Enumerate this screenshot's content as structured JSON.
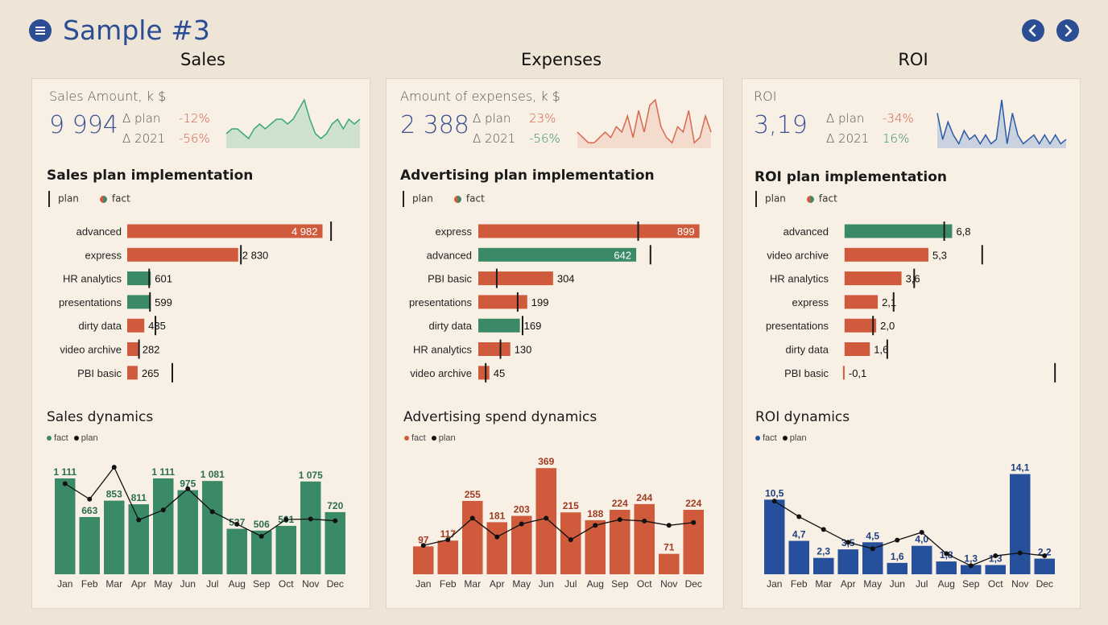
{
  "page": {
    "title": "Sample #3"
  },
  "colors": {
    "green": "#3a8a68",
    "red": "#cf5a3c",
    "blue": "#264f9c",
    "accent": "#2b4d94"
  },
  "sections": [
    {
      "title": "Sales",
      "kpi": {
        "label": "Sales Amount, k $",
        "value": "9 994",
        "plan_label": "Δ plan",
        "plan_value": "-12%",
        "plan_sign": "neg",
        "y2021_label": "Δ 2021",
        "y2021_value": "-56%",
        "y2021_sign": "neg",
        "spark_color": "#3aa874",
        "spark_fill": "#cfe1cf",
        "spark": [
          3,
          4,
          4,
          3,
          2,
          4,
          5,
          4,
          5,
          6,
          6,
          5,
          6,
          8,
          10,
          6,
          3,
          2,
          3,
          5,
          6,
          4,
          6,
          5,
          6
        ]
      },
      "plan_title": "Sales plan implementation",
      "legend_plan": "plan",
      "legend_fact": "fact",
      "dyn_title": "Sales dynamics",
      "dyn_legend_fact": "fact",
      "dyn_legend_plan": "plan"
    },
    {
      "title": "Expenses",
      "kpi": {
        "label": "Amount of expenses, k $",
        "value": "2 388",
        "plan_label": "Δ plan",
        "plan_value": "23%",
        "plan_sign": "neg",
        "y2021_label": "Δ 2021",
        "y2021_value": "-56%",
        "y2021_sign": "pos",
        "spark_color": "#d8684f",
        "spark_fill": "#f3dccd",
        "spark": [
          3,
          2,
          1,
          1,
          2,
          3,
          2,
          4,
          3,
          6,
          2,
          7,
          3,
          8,
          9,
          4,
          2,
          1,
          4,
          3,
          7,
          1,
          2,
          6,
          3
        ]
      },
      "plan_title": "Advertising plan implementation",
      "legend_plan": "plan",
      "legend_fact": "fact",
      "dyn_title": "Advertising spend dynamics",
      "dyn_legend_fact": "fact",
      "dyn_legend_plan": "plan"
    },
    {
      "title": "ROI",
      "kpi": {
        "label": "ROI",
        "value": "3,19",
        "plan_label": "Δ plan",
        "plan_value": "-34%",
        "plan_sign": "neg",
        "y2021_label": "Δ 2021",
        "y2021_value": "16%",
        "y2021_sign": "pos",
        "spark_color": "#2b5aa8",
        "spark_fill": "#c9d2de",
        "spark": [
          8,
          2,
          6,
          3,
          1,
          4,
          2,
          3,
          1,
          3,
          1,
          2,
          11,
          1,
          8,
          3,
          1,
          2,
          3,
          1,
          3,
          1,
          3,
          1,
          2
        ]
      },
      "plan_title": "ROI plan implementation",
      "legend_plan": "plan",
      "legend_fact": "fact",
      "dyn_title": "ROI dynamics",
      "dyn_legend_fact": "fact",
      "dyn_legend_plan": "plan"
    }
  ],
  "chart_data": [
    {
      "id": "sales_plan",
      "type": "bar",
      "orientation": "horizontal",
      "title": "Sales plan implementation",
      "categories": [
        "advanced",
        "express",
        "HR analytics",
        "presentations",
        "dirty data",
        "video archive",
        "PBI basic"
      ],
      "values": [
        4982,
        2830,
        601,
        599,
        435,
        282,
        265
      ],
      "labels": [
        "4 982",
        "2 830",
        "601",
        "599",
        "435",
        "282",
        "265"
      ],
      "plan": [
        5200,
        2900,
        560,
        580,
        720,
        300,
        1150
      ],
      "colors": [
        "red",
        "red",
        "green",
        "green",
        "red",
        "red",
        "red"
      ],
      "xlim": [
        0,
        5300
      ]
    },
    {
      "id": "adv_plan",
      "type": "bar",
      "orientation": "horizontal",
      "title": "Advertising plan implementation",
      "categories": [
        "express",
        "advanced",
        "PBI basic",
        "presentations",
        "dirty data",
        "HR analytics",
        "video archive"
      ],
      "values": [
        899,
        642,
        304,
        199,
        169,
        130,
        45
      ],
      "labels": [
        "899",
        "642",
        "304",
        "199",
        "169",
        "130",
        "45"
      ],
      "plan": [
        650,
        700,
        75,
        160,
        180,
        90,
        30
      ],
      "colors": [
        "red",
        "green",
        "red",
        "red",
        "green",
        "red",
        "red"
      ],
      "xlim": [
        0,
        920
      ]
    },
    {
      "id": "roi_plan",
      "type": "bar",
      "orientation": "horizontal",
      "title": "ROI plan implementation",
      "categories": [
        "advanced",
        "video archive",
        "HR analytics",
        "express",
        "presentations",
        "dirty data",
        "PBI basic"
      ],
      "values": [
        6.8,
        5.3,
        3.6,
        2.1,
        2.0,
        1.6,
        -0.1
      ],
      "labels": [
        "6,8",
        "5,3",
        "3,6",
        "2,1",
        "2,0",
        "1,6",
        "-0,1"
      ],
      "plan": [
        6.3,
        8.7,
        4.4,
        3.1,
        1.8,
        2.7,
        13.3
      ],
      "colors": [
        "green",
        "red",
        "red",
        "red",
        "red",
        "red",
        "red"
      ],
      "xlim": [
        -0.5,
        13.8
      ]
    },
    {
      "id": "sales_dyn",
      "type": "bar",
      "title": "Sales dynamics",
      "categories": [
        "Jan",
        "Feb",
        "Mar",
        "Apr",
        "May",
        "Jun",
        "Jul",
        "Aug",
        "Sep",
        "Oct",
        "Nov",
        "Dec"
      ],
      "values": [
        1111,
        663,
        853,
        811,
        1111,
        975,
        1081,
        527,
        506,
        561,
        1075,
        720
      ],
      "labels": [
        "1 111",
        "663",
        "853",
        "811",
        "1 111",
        "975",
        "1 081",
        "527",
        "506",
        "561",
        "1 075",
        "720"
      ],
      "plan": [
        1050,
        870,
        1240,
        630,
        745,
        990,
        725,
        580,
        440,
        635,
        640,
        620
      ],
      "color": "green",
      "label_color": "#2b6e4f",
      "ylim": [
        0,
        1400
      ]
    },
    {
      "id": "adv_dyn",
      "type": "bar",
      "title": "Advertising spend dynamics",
      "categories": [
        "Jan",
        "Feb",
        "Mar",
        "Apr",
        "May",
        "Jun",
        "Jul",
        "Aug",
        "Sep",
        "Oct",
        "Nov",
        "Dec"
      ],
      "values": [
        97,
        117,
        255,
        181,
        203,
        369,
        215,
        188,
        224,
        244,
        71,
        224
      ],
      "labels": [
        "97",
        "117",
        "255",
        "181",
        "203",
        "369",
        "215",
        "188",
        "224",
        "244",
        "71",
        "224"
      ],
      "plan": [
        100,
        120,
        195,
        130,
        175,
        195,
        120,
        170,
        190,
        185,
        170,
        180
      ],
      "color": "red",
      "label_color": "#a03b22",
      "ylim": [
        0,
        420
      ]
    },
    {
      "id": "roi_dyn",
      "type": "bar",
      "title": "ROI dynamics",
      "categories": [
        "Jan",
        "Feb",
        "Mar",
        "Apr",
        "May",
        "Jun",
        "Jul",
        "Aug",
        "Sep",
        "Oct",
        "Nov",
        "Dec"
      ],
      "values": [
        10.5,
        4.7,
        2.3,
        3.5,
        4.5,
        1.6,
        4.0,
        1.8,
        1.3,
        1.3,
        14.1,
        2.2
      ],
      "labels": [
        "10,5",
        "4,7",
        "2,3",
        "3,5",
        "4,5",
        "1,6",
        "4,0",
        "1,8",
        "1,3",
        "1,3",
        "14,1",
        "2,2"
      ],
      "plan": [
        10.3,
        8.1,
        6.3,
        4.5,
        3.6,
        4.8,
        5.9,
        2.9,
        1.2,
        2.6,
        3.0,
        2.6
      ],
      "color": "blue",
      "label_color": "#1e3f82",
      "ylim": [
        0,
        17
      ]
    }
  ]
}
